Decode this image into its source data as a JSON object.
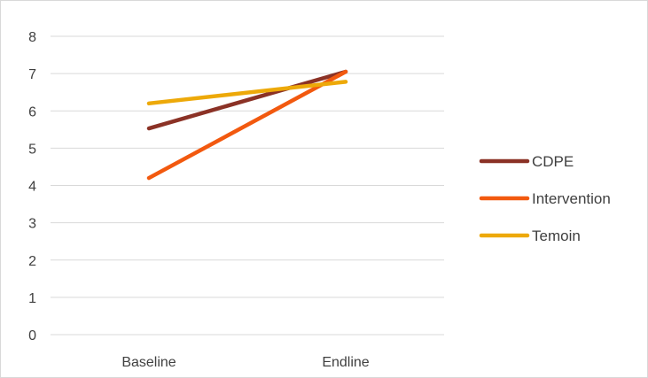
{
  "chart_data": {
    "type": "line",
    "title": "",
    "xlabel": "",
    "ylabel": "",
    "categories": [
      "Baseline",
      "Endline"
    ],
    "ylim": [
      0,
      8
    ],
    "yticks": [
      0,
      1,
      2,
      3,
      4,
      5,
      6,
      7,
      8
    ],
    "grid": true,
    "legend_position": "right",
    "series": [
      {
        "name": "CDPE",
        "values": [
          5.53,
          7.05
        ],
        "color": "#8B3226"
      },
      {
        "name": "Intervention",
        "values": [
          4.2,
          7.05
        ],
        "color": "#F2590F"
      },
      {
        "name": "Temoin",
        "values": [
          6.2,
          6.78
        ],
        "color": "#EDA909"
      }
    ]
  }
}
